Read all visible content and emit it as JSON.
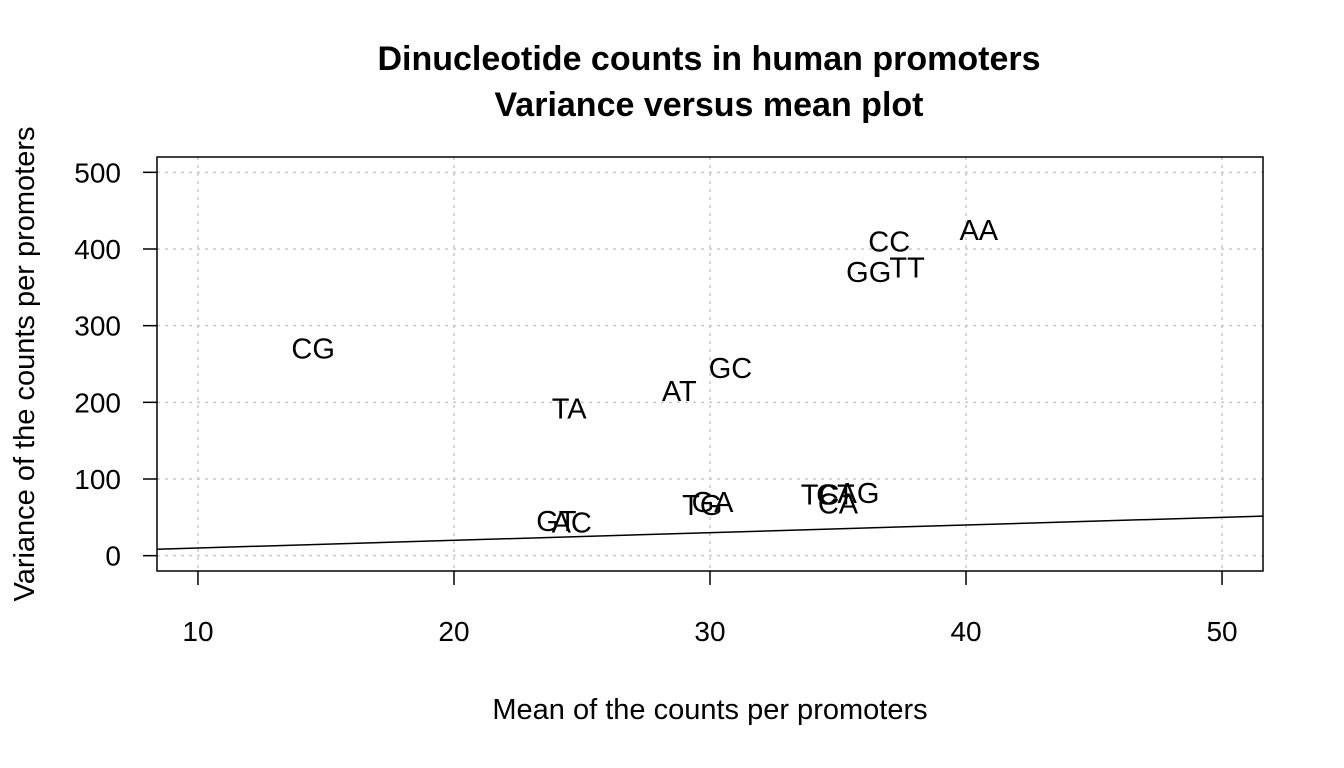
{
  "chart_data": {
    "type": "scatter",
    "title": "Dinucleotide counts in human promoters",
    "subtitle": "Variance versus mean plot",
    "xlabel": "Mean of the counts per promoters",
    "ylabel": "Variance of the counts per promoters",
    "xlim": [
      8.4,
      51.6
    ],
    "ylim": [
      -20,
      520
    ],
    "xticks": [
      10,
      20,
      30,
      40,
      50
    ],
    "yticks": [
      0,
      100,
      200,
      300,
      400,
      500
    ],
    "grid": true,
    "marker": "text-label",
    "points": [
      {
        "label": "CG",
        "x": 14.5,
        "y": 270
      },
      {
        "label": "TA",
        "x": 24.5,
        "y": 192
      },
      {
        "label": "AT",
        "x": 28.8,
        "y": 215
      },
      {
        "label": "GC",
        "x": 30.8,
        "y": 245
      },
      {
        "label": "CC",
        "x": 37.0,
        "y": 410
      },
      {
        "label": "AA",
        "x": 40.5,
        "y": 425
      },
      {
        "label": "GG",
        "x": 36.2,
        "y": 370
      },
      {
        "label": "TT",
        "x": 37.7,
        "y": 376
      },
      {
        "label": "GT",
        "x": 24.0,
        "y": 45
      },
      {
        "label": "AC",
        "x": 24.6,
        "y": 43
      },
      {
        "label": "TG",
        "x": 29.7,
        "y": 66
      },
      {
        "label": "GA",
        "x": 30.1,
        "y": 70
      },
      {
        "label": "TC",
        "x": 34.3,
        "y": 80
      },
      {
        "label": "CA",
        "x": 35.0,
        "y": 68
      },
      {
        "label": "AG",
        "x": 35.8,
        "y": 82
      },
      {
        "label": "CT",
        "x": 34.9,
        "y": 80
      }
    ],
    "reference_line": {
      "name": "y = x",
      "slope": 1,
      "intercept": 0
    }
  }
}
